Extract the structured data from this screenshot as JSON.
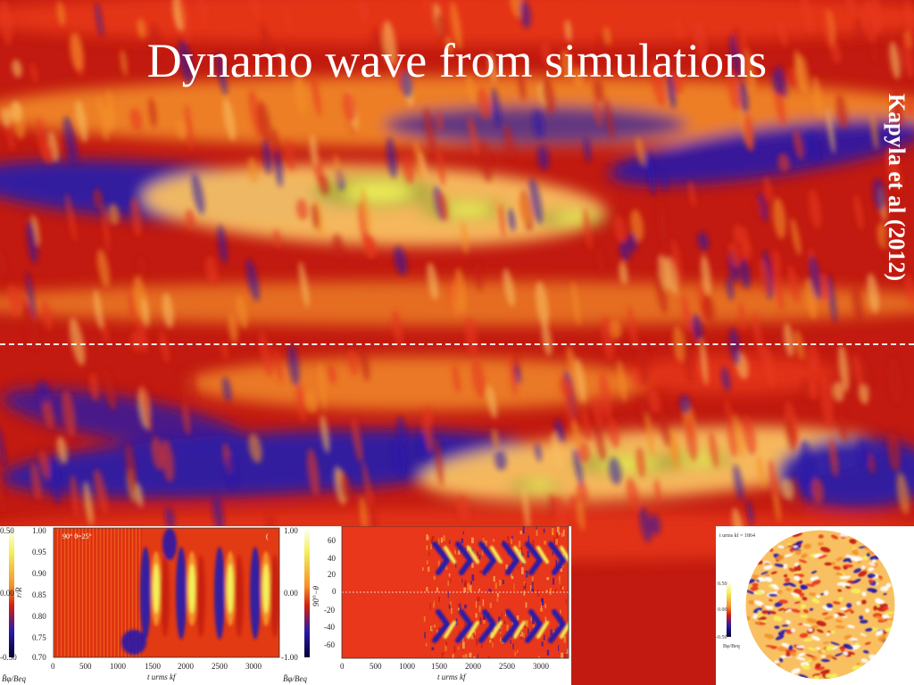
{
  "slide": {
    "title": "Dynamo wave from simulations",
    "credit": "Kapyla et al (2012)"
  },
  "colors": {
    "dark_red": "#c21a10",
    "red": "#e8371a",
    "orange": "#f4902a",
    "light_orange": "#f9c061",
    "yellow": "#f2f25a",
    "olive": "#a8a83a",
    "blue": "#2a1aa8",
    "white": "#ffffff"
  },
  "panel_left": {
    "colorbar_ticks": [
      "0.50",
      "0.00",
      "-0.50"
    ],
    "colorbar_label": "B̄φ/Beq",
    "y_ticks": [
      "1.00",
      "0.95",
      "0.90",
      "0.85",
      "0.80",
      "0.75",
      "0.70"
    ],
    "y_label": "r/R",
    "x_ticks": [
      "0",
      "500",
      "1000",
      "1500",
      "2000",
      "2500",
      "3000"
    ],
    "x_label": "t urms kf",
    "inset_label": "90° θ=25°",
    "corner_label": "("
  },
  "panel_middle": {
    "colorbar_ticks": [
      "1.00",
      "0.00",
      "-1.00"
    ],
    "colorbar_label": "B̄φ/Beq",
    "y_ticks": [
      "60",
      "40",
      "20",
      "0",
      "-20",
      "-40",
      "-60"
    ],
    "y_label": "90°−θ",
    "x_ticks": [
      "0",
      "500",
      "1000",
      "1500",
      "2000",
      "2500",
      "3000"
    ],
    "x_label": "t urms kf"
  },
  "panel_right": {
    "header": "t urms kf = 1864",
    "colorbar_ticks": [
      "0.50",
      "0.00",
      "-0.50"
    ],
    "colorbar_label": "Bφ/Beq"
  }
}
